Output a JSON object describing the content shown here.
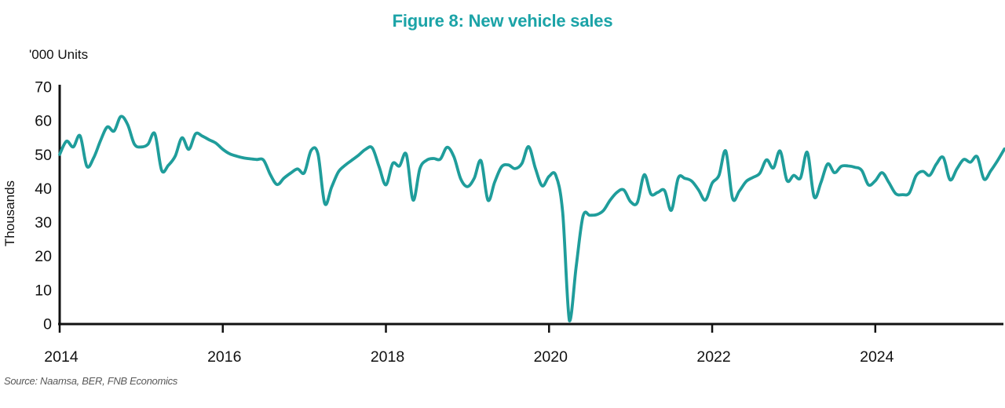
{
  "title": "Figure 8: New vehicle sales",
  "units_label": "'000 Units",
  "y_axis_label": "Thousands",
  "source": "Source: Naamsa, BER, FNB Economics",
  "colors": {
    "title_teal": "#1ba3a7",
    "line_teal": "#1f9d9b",
    "axis_black": "#111111",
    "source_gray": "#595959"
  },
  "chart_data": {
    "type": "line",
    "title": "Figure 8: New vehicle sales",
    "xlabel": "",
    "ylabel": "Thousands",
    "units": "'000 Units",
    "frequency": "monthly",
    "x_monthly_start": "2014-01",
    "x_monthly_end": "2025-08",
    "ylim": [
      0,
      70
    ],
    "yticks": [
      0,
      10,
      20,
      30,
      40,
      50,
      60,
      70
    ],
    "xtick_labels": [
      "2014",
      "2016",
      "2018",
      "2020",
      "2022",
      "2024"
    ],
    "xtick_month_interval": 24,
    "grid": false,
    "legend": false,
    "line_color": "#1f9d9b",
    "axis_color": "#111111",
    "series": [
      {
        "name": "New vehicle sales ('000 units, monthly)",
        "values": [
          50.0,
          53.9,
          52.2,
          55.5,
          46.5,
          49.0,
          54.0,
          58.1,
          56.9,
          61.2,
          58.8,
          53.0,
          52.2,
          53.0,
          56.1,
          45.3,
          46.8,
          49.5,
          54.9,
          51.5,
          56.1,
          55.4,
          54.3,
          53.3,
          51.5,
          50.2,
          49.5,
          49.0,
          48.7,
          48.5,
          48.3,
          44.0,
          41.1,
          43.0,
          44.5,
          45.7,
          44.6,
          51.2,
          50.1,
          35.5,
          40.3,
          44.8,
          46.8,
          48.3,
          49.8,
          51.5,
          51.9,
          46.3,
          41.0,
          47.3,
          46.6,
          50.0,
          36.5,
          45.8,
          48.3,
          48.8,
          48.6,
          52.1,
          49.3,
          42.8,
          40.5,
          43.0,
          48.1,
          36.5,
          41.8,
          46.3,
          46.9,
          45.8,
          47.3,
          52.3,
          45.8,
          40.7,
          43.5,
          43.8,
          33.0,
          0.8,
          17.0,
          31.8,
          32.0,
          32.2,
          33.4,
          36.5,
          38.8,
          39.5,
          36.0,
          35.8,
          44.0,
          38.3,
          38.8,
          39.3,
          33.5,
          43.0,
          42.9,
          42.1,
          39.5,
          36.5,
          41.5,
          43.8,
          51.0,
          37.0,
          39.2,
          42.0,
          43.2,
          44.4,
          48.4,
          46.0,
          51.0,
          42.3,
          43.8,
          43.1,
          50.6,
          37.5,
          41.7,
          47.2,
          44.6,
          46.5,
          46.6,
          46.2,
          45.3,
          41.0,
          42.2,
          44.6,
          41.7,
          38.4,
          38.1,
          38.6,
          43.7,
          45.0,
          43.8,
          47.2,
          49.1,
          42.5,
          45.7,
          48.5,
          47.7,
          49.3,
          42.7,
          45.2,
          48.2,
          51.6
        ]
      }
    ]
  }
}
